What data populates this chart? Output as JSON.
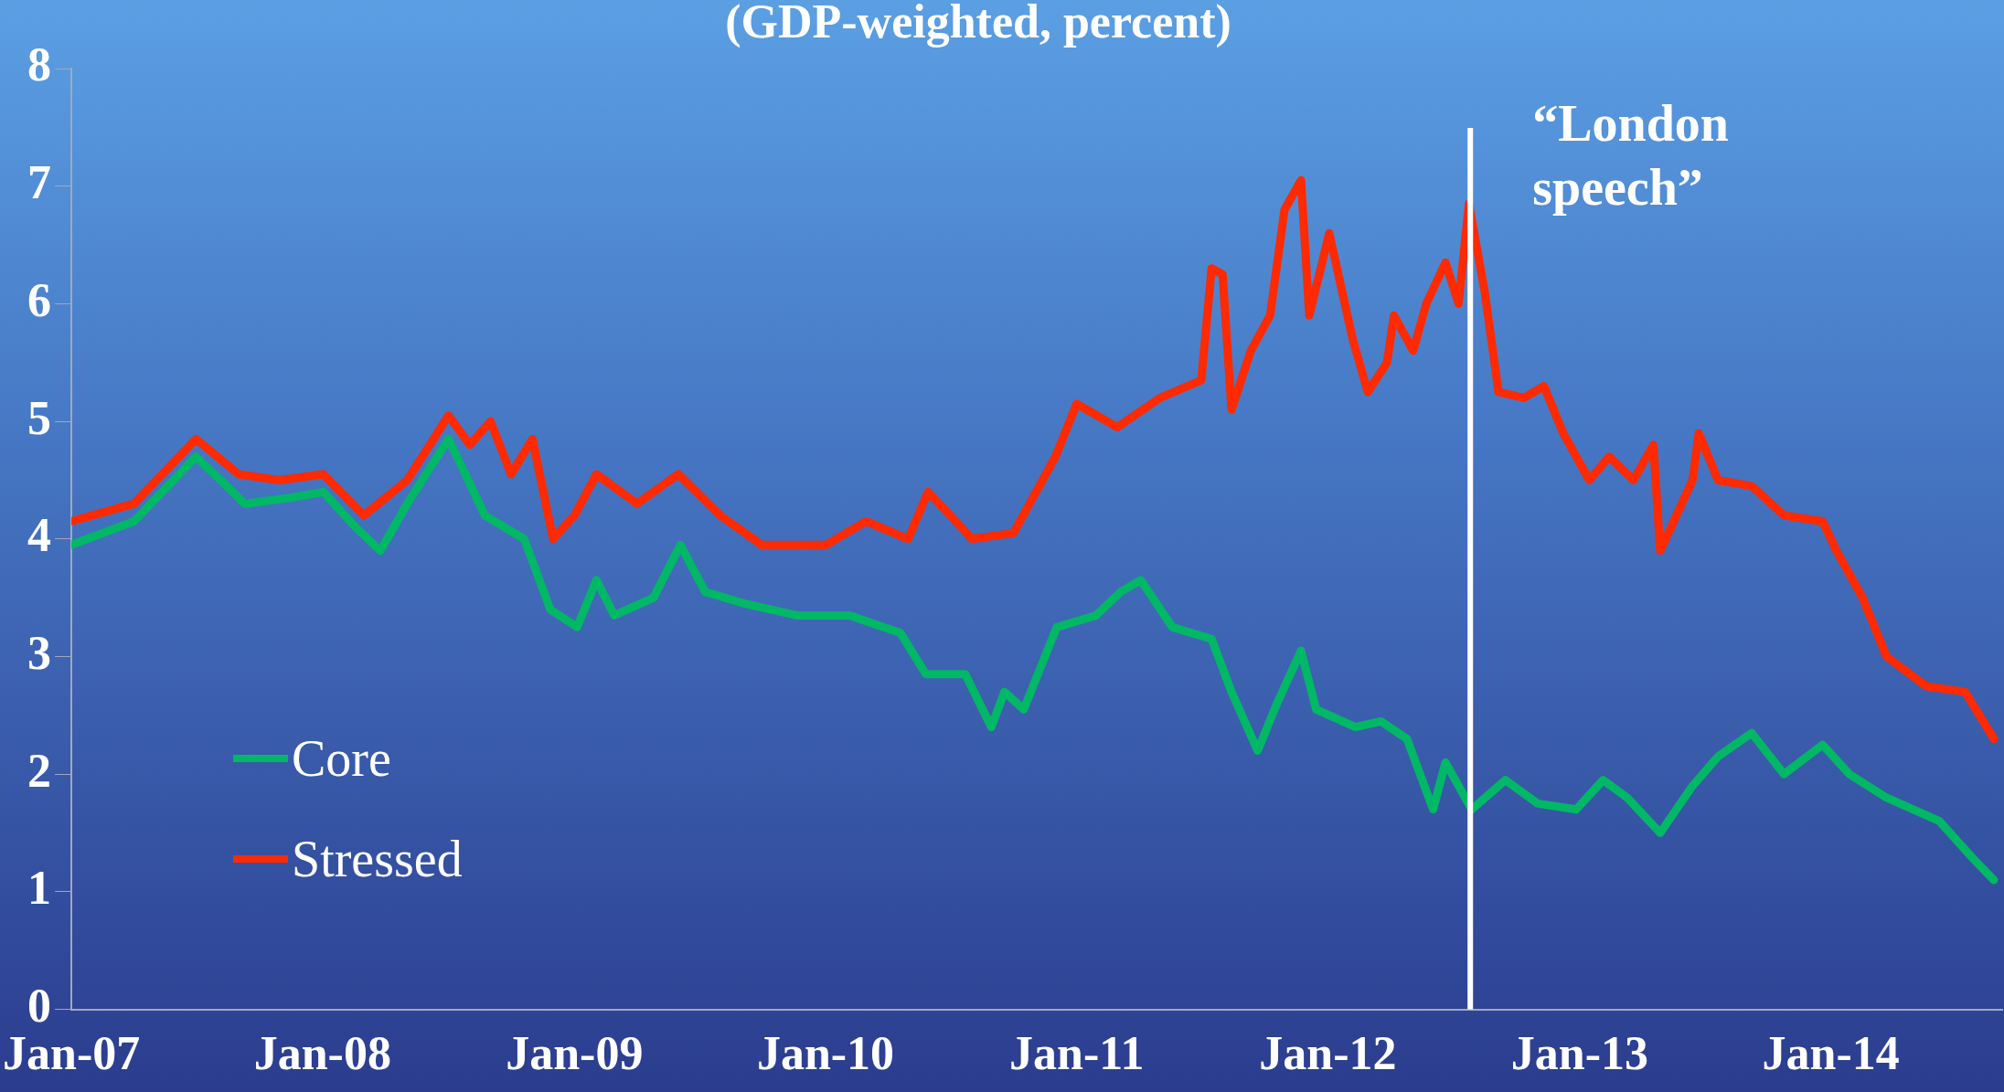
{
  "chart_data": {
    "type": "line",
    "title": "(GDP-weighted, percent)",
    "xlim": [
      "2007-01-01",
      "2014-09-07"
    ],
    "xticks": [
      {
        "value": "2007-01",
        "label": "Jan-07"
      },
      {
        "value": "2008-01",
        "label": "Jan-08"
      },
      {
        "value": "2009-01",
        "label": "Jan-09"
      },
      {
        "value": "2010-01",
        "label": "Jan-10"
      },
      {
        "value": "2011-01",
        "label": "Jan-11"
      },
      {
        "value": "2012-01",
        "label": "Jan-12"
      },
      {
        "value": "2013-01",
        "label": "Jan-13"
      },
      {
        "value": "2014-01",
        "label": "Jan-14"
      }
    ],
    "ylim": [
      0,
      8
    ],
    "yticks": [
      0,
      1,
      2,
      3,
      4,
      5,
      6,
      7,
      8
    ],
    "grid": false,
    "legend": "bottom left",
    "marker": "none",
    "line_style": "solid",
    "ref_lines": [
      {
        "axis": "x",
        "value": "2012-07-26",
        "label": "“London speech”",
        "color": "#ffffff"
      }
    ],
    "series": [
      {
        "name": "Core",
        "color": "#00b865",
        "x": [
          "2007-01-01",
          "2007-04-02",
          "2007-07-01",
          "2007-09-10",
          "2007-11-15",
          "2008-01-02",
          "2008-02-18",
          "2008-03-25",
          "2008-05-03",
          "2008-07-02",
          "2008-08-24",
          "2008-10-20",
          "2008-11-27",
          "2009-01-05",
          "2009-02-02",
          "2009-02-28",
          "2009-04-26",
          "2009-06-04",
          "2009-07-10",
          "2009-09-06",
          "2009-11-20",
          "2010-02-05",
          "2010-04-20",
          "2010-05-27",
          "2010-07-23",
          "2010-08-30",
          "2010-09-18",
          "2010-10-16",
          "2010-12-03",
          "2011-01-29",
          "2011-03-06",
          "2011-04-04",
          "2011-05-20",
          "2011-07-16",
          "2011-08-14",
          "2011-09-21",
          "2011-10-19",
          "2011-11-23",
          "2011-12-15",
          "2012-02-10",
          "2012-03-18",
          "2012-04-25",
          "2012-06-02",
          "2012-06-20",
          "2012-07-28",
          "2012-09-15",
          "2012-11-01",
          "2012-12-27",
          "2013-02-04",
          "2013-03-11",
          "2013-04-28",
          "2013-06-14",
          "2013-07-21",
          "2013-09-08",
          "2013-10-25",
          "2013-12-20",
          "2014-01-28",
          "2014-03-23",
          "2014-06-08",
          "2014-07-24",
          "2014-08-26"
        ],
        "values": [
          3.95,
          4.15,
          4.7,
          4.3,
          4.35,
          4.4,
          4.1,
          3.9,
          4.3,
          4.85,
          4.2,
          4.0,
          3.4,
          3.25,
          3.65,
          3.35,
          3.5,
          3.95,
          3.55,
          3.45,
          3.35,
          3.35,
          3.2,
          2.85,
          2.85,
          2.4,
          2.7,
          2.55,
          3.25,
          3.35,
          3.55,
          3.65,
          3.25,
          3.15,
          2.7,
          2.2,
          2.6,
          3.05,
          2.55,
          2.4,
          2.45,
          2.3,
          1.7,
          2.1,
          1.7,
          1.95,
          1.75,
          1.7,
          1.95,
          1.8,
          1.5,
          1.9,
          2.15,
          2.35,
          2.0,
          2.25,
          2.0,
          1.8,
          1.6,
          1.3,
          1.1
        ]
      },
      {
        "name": "Stressed",
        "color": "#ff2a00",
        "x": [
          "2007-01-01",
          "2007-04-02",
          "2007-07-01",
          "2007-09-01",
          "2007-10-30",
          "2008-01-02",
          "2008-03-01",
          "2008-05-03",
          "2008-07-02",
          "2008-08-02",
          "2008-09-01",
          "2008-10-01",
          "2008-11-01",
          "2008-12-01",
          "2009-01-01",
          "2009-02-02",
          "2009-04-02",
          "2009-06-01",
          "2009-08-01",
          "2009-09-30",
          "2010-01-02",
          "2010-03-01",
          "2010-05-01",
          "2010-05-30",
          "2010-08-02",
          "2010-10-01",
          "2010-12-01",
          "2011-01-01",
          "2011-03-01",
          "2011-05-02",
          "2011-07-01",
          "2011-07-16",
          "2011-08-01",
          "2011-08-14",
          "2011-09-11",
          "2011-10-09",
          "2011-10-30",
          "2011-11-23",
          "2011-12-05",
          "2012-01-03",
          "2012-02-06",
          "2012-02-28",
          "2012-03-27",
          "2012-04-06",
          "2012-05-04",
          "2012-05-23",
          "2012-06-20",
          "2012-07-09",
          "2012-07-24",
          "2012-08-16",
          "2012-09-05",
          "2012-10-12",
          "2012-11-10",
          "2012-12-08",
          "2013-01-15",
          "2013-02-13",
          "2013-03-20",
          "2013-04-18",
          "2013-04-28",
          "2013-06-14",
          "2013-06-23",
          "2013-07-21",
          "2013-09-08",
          "2013-10-25",
          "2013-12-20",
          "2014-01-09",
          "2014-02-16",
          "2014-03-23",
          "2014-05-19",
          "2014-07-15",
          "2014-08-26"
        ],
        "values": [
          4.15,
          4.3,
          4.85,
          4.55,
          4.5,
          4.55,
          4.2,
          4.5,
          5.05,
          4.8,
          5.0,
          4.55,
          4.85,
          4.0,
          4.2,
          4.55,
          4.3,
          4.55,
          4.2,
          3.95,
          3.95,
          4.15,
          4.0,
          4.4,
          4.0,
          4.05,
          4.7,
          5.15,
          4.95,
          5.2,
          5.35,
          6.3,
          6.25,
          5.1,
          5.6,
          5.9,
          6.8,
          7.05,
          5.9,
          6.6,
          5.7,
          5.25,
          5.5,
          5.9,
          5.6,
          6.0,
          6.35,
          6.0,
          6.85,
          6.1,
          5.25,
          5.2,
          5.3,
          4.9,
          4.5,
          4.7,
          4.5,
          4.8,
          3.9,
          4.5,
          4.9,
          4.5,
          4.45,
          4.2,
          4.15,
          3.9,
          3.5,
          3.0,
          2.75,
          2.7,
          2.3
        ]
      }
    ]
  }
}
